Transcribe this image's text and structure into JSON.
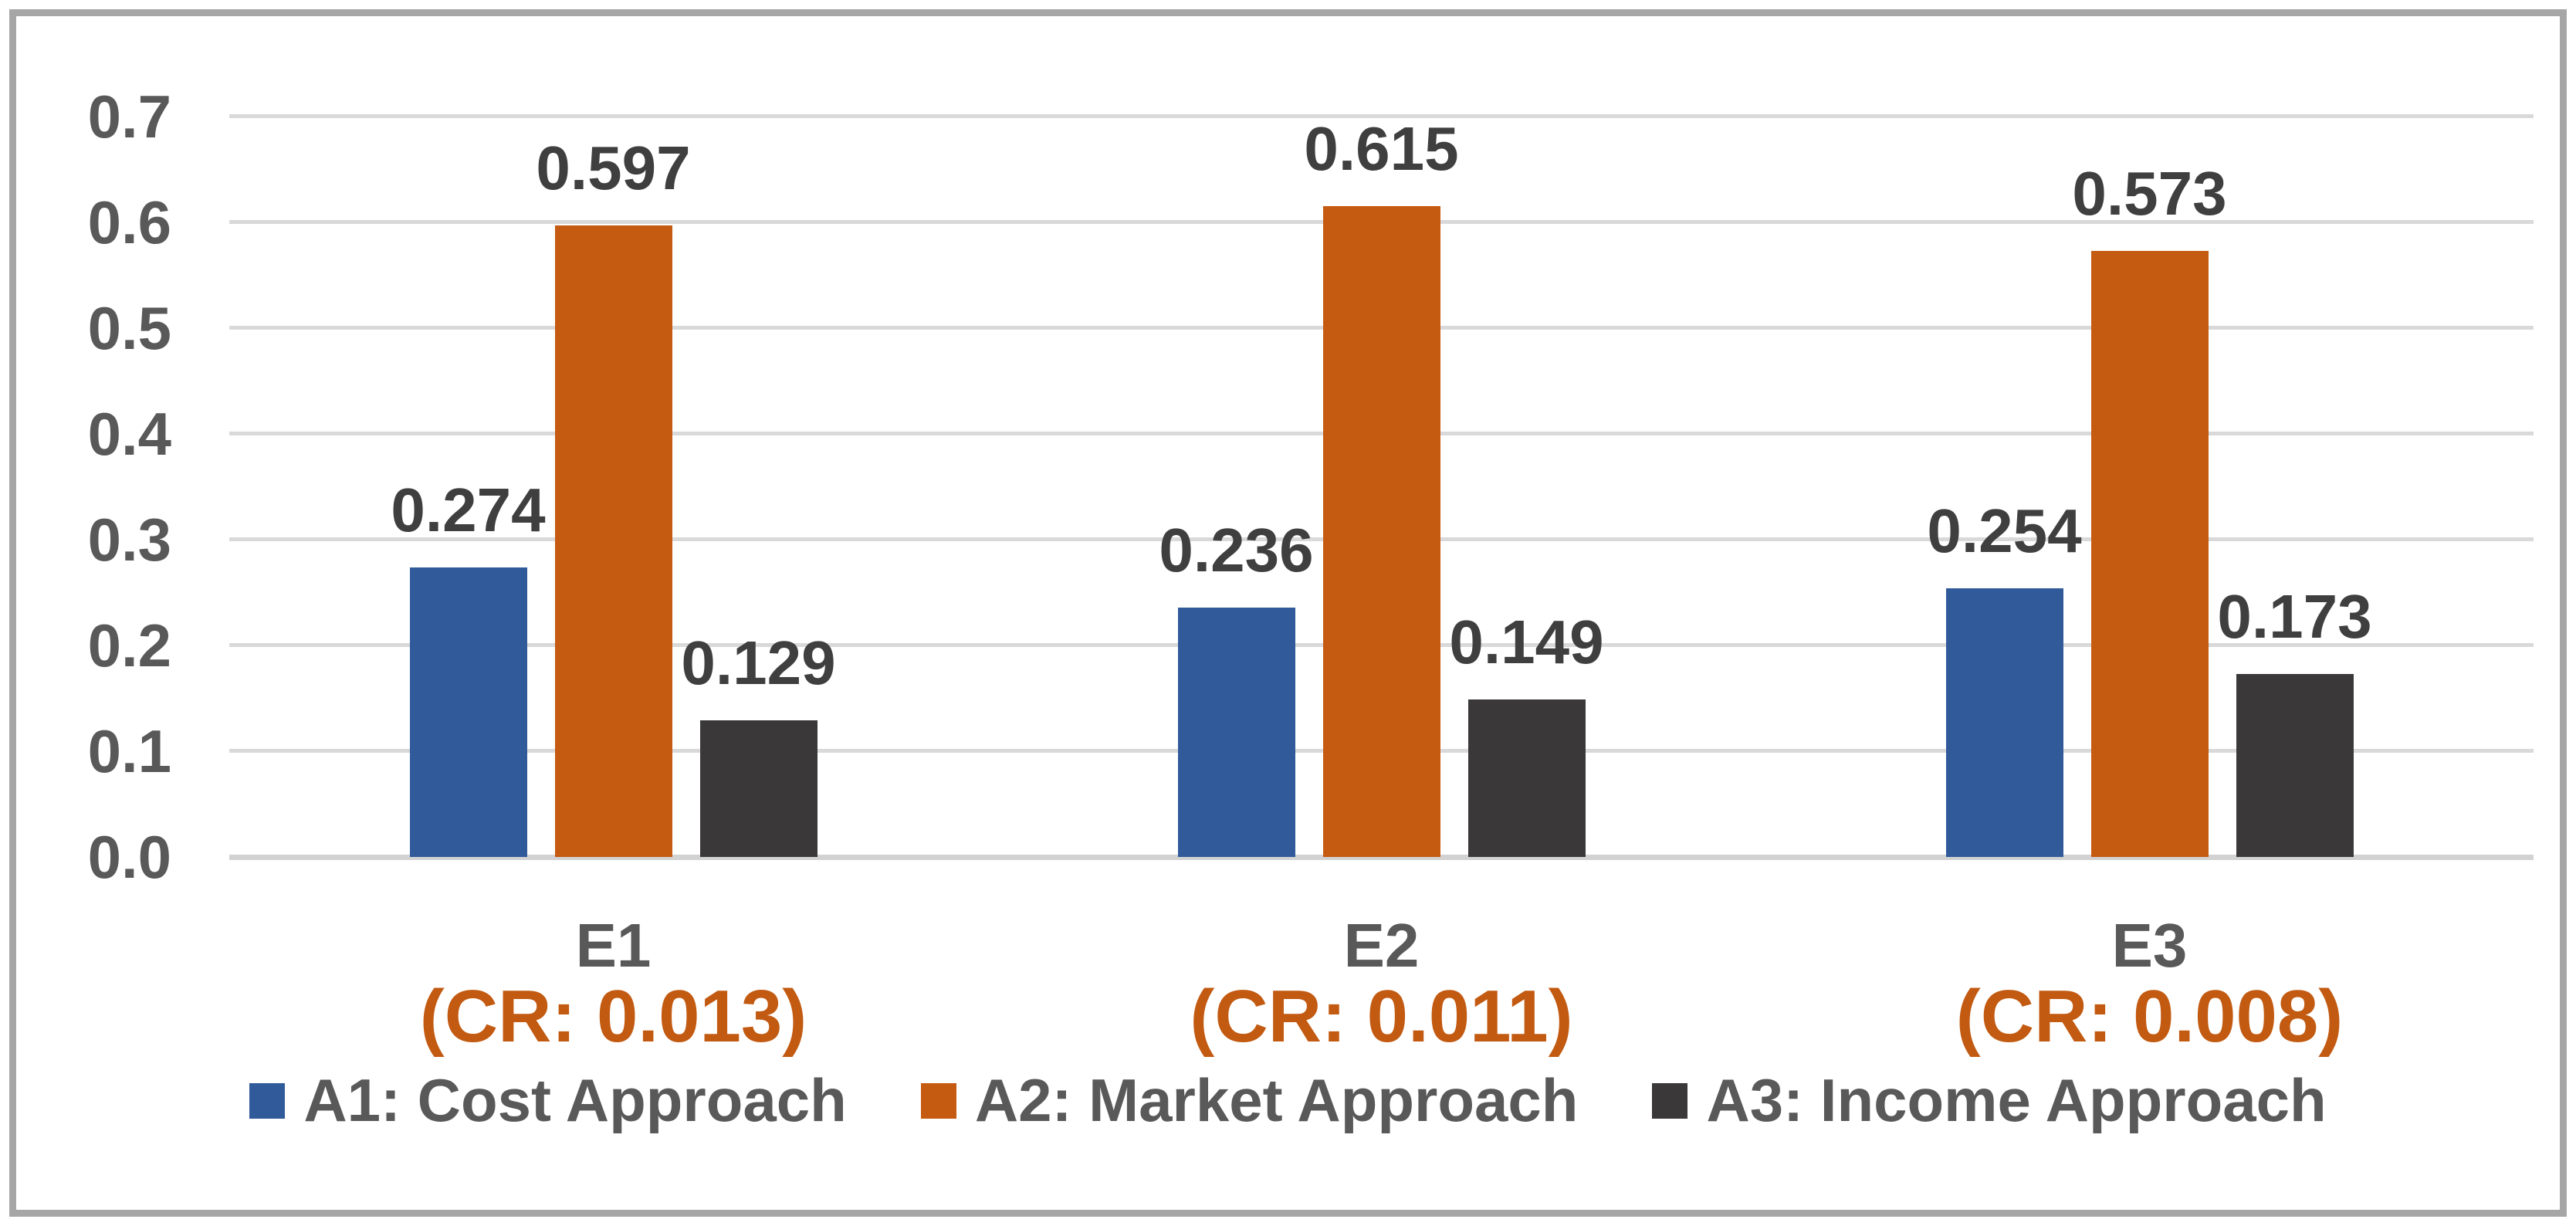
{
  "chart_data": {
    "type": "bar",
    "title": "",
    "categories": [
      "E1",
      "E2",
      "E3"
    ],
    "category_sublabels": [
      "(CR: 0.013)",
      "(CR: 0.011)",
      "(CR: 0.008)"
    ],
    "series": [
      {
        "name": "A1: Cost Approach",
        "color": "#305a99",
        "values": [
          0.274,
          0.236,
          0.254
        ],
        "labels": [
          "0.274",
          "0.236",
          "0.254"
        ]
      },
      {
        "name": "A2: Market Approach",
        "color": "#c55a11",
        "values": [
          0.597,
          0.615,
          0.573
        ],
        "labels": [
          "0.597",
          "0.615",
          "0.573"
        ]
      },
      {
        "name": "A3: Income Approach",
        "color": "#3a3838",
        "values": [
          0.129,
          0.149,
          0.173
        ],
        "labels": [
          "0.129",
          "0.149",
          "0.173"
        ]
      }
    ],
    "y_ticks": [
      "0.7",
      "0.6",
      "0.5",
      "0.4",
      "0.3",
      "0.2",
      "0.1",
      "0.0"
    ],
    "ylim": [
      0,
      0.7
    ],
    "grid": true,
    "legend_position": "bottom",
    "xlabel": "",
    "ylabel": ""
  },
  "colors": {
    "series_blue": "#305a99",
    "series_orange": "#c55a11",
    "series_dark": "#3a3838",
    "cr_text": "#c25a11",
    "axis_text": "#595959",
    "value_text": "#3f3f3f",
    "gridline": "#d9d9d9",
    "frame_border": "#a6a6a6",
    "background": "#ffffff"
  }
}
